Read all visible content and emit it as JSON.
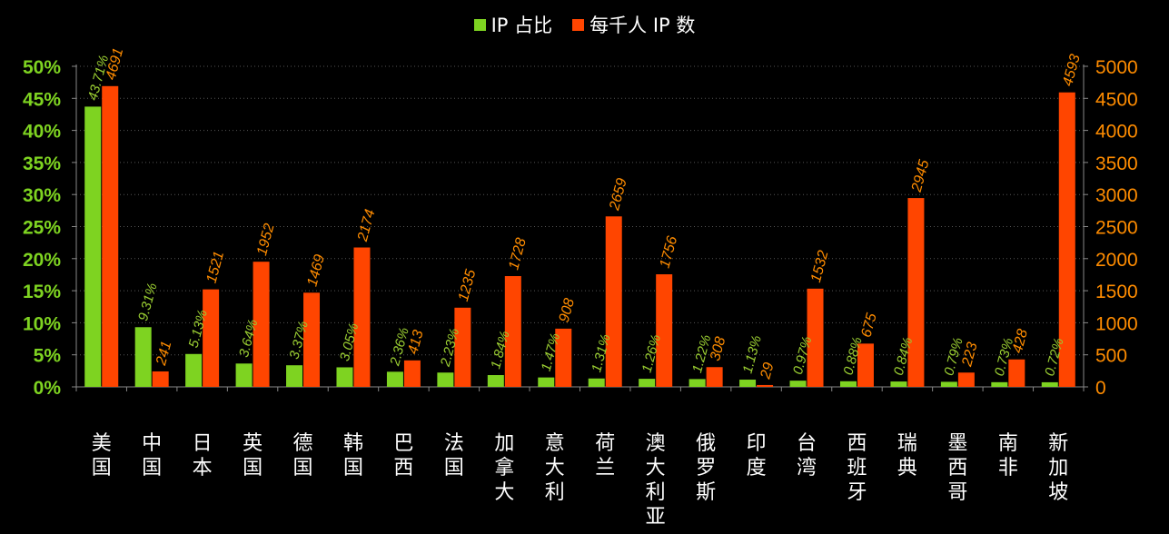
{
  "chart_data": {
    "type": "bar",
    "categories": [
      "美国",
      "中国",
      "日本",
      "英国",
      "德国",
      "韩国",
      "巴西",
      "法国",
      "加拿大",
      "意大利",
      "荷兰",
      "澳大利亚",
      "俄罗斯",
      "印度",
      "台湾",
      "西班牙",
      "瑞典",
      "墨西哥",
      "南非",
      "新加坡"
    ],
    "series": [
      {
        "name": "IP 占比",
        "axis": "left",
        "color": "#7ed321",
        "values": [
          43.71,
          9.31,
          5.13,
          3.64,
          3.37,
          3.05,
          2.36,
          2.23,
          1.84,
          1.47,
          1.31,
          1.26,
          1.22,
          1.13,
          0.97,
          0.88,
          0.84,
          0.79,
          0.73,
          0.72
        ],
        "labels": [
          "43.71%",
          "9.31%",
          "5.13%",
          "3.64%",
          "3.37%",
          "3.05%",
          "2.36%",
          "2.23%",
          "1.84%",
          "1.47%",
          "1.31%",
          "1.26%",
          "1.22%",
          "1.13%",
          "0.97%",
          "0.88%",
          "0.84%",
          "0.79%",
          "0.73%",
          "0.72%"
        ]
      },
      {
        "name": "每千人 IP 数",
        "axis": "right",
        "color": "#ff4500",
        "values": [
          4691,
          241,
          1521,
          1952,
          1469,
          2174,
          413,
          1235,
          1728,
          908,
          2659,
          1756,
          308,
          29,
          1532,
          675,
          2945,
          223,
          428,
          4593
        ],
        "labels": [
          "4691",
          "241",
          "1521",
          "1952",
          "1469",
          "2174",
          "413",
          "1235",
          "1728",
          "908",
          "2659",
          "1756",
          "308",
          "29",
          "1532",
          "675",
          "2945",
          "223",
          "428",
          "4593"
        ]
      }
    ],
    "left_axis": {
      "ylim": [
        0,
        50
      ],
      "ticks": [
        "0%",
        "5%",
        "10%",
        "15%",
        "20%",
        "25%",
        "30%",
        "35%",
        "40%",
        "45%",
        "50%"
      ],
      "color": "#7ed321"
    },
    "right_axis": {
      "ylim": [
        0,
        5000
      ],
      "ticks": [
        "0",
        "500",
        "1000",
        "1500",
        "2000",
        "2500",
        "3000",
        "3500",
        "4000",
        "4500",
        "5000"
      ],
      "color": "#ff8c00"
    },
    "grid": true,
    "legend_position": "top-center",
    "label_colors": {
      "left": "#9acd32",
      "right": "#ff8c00"
    }
  }
}
